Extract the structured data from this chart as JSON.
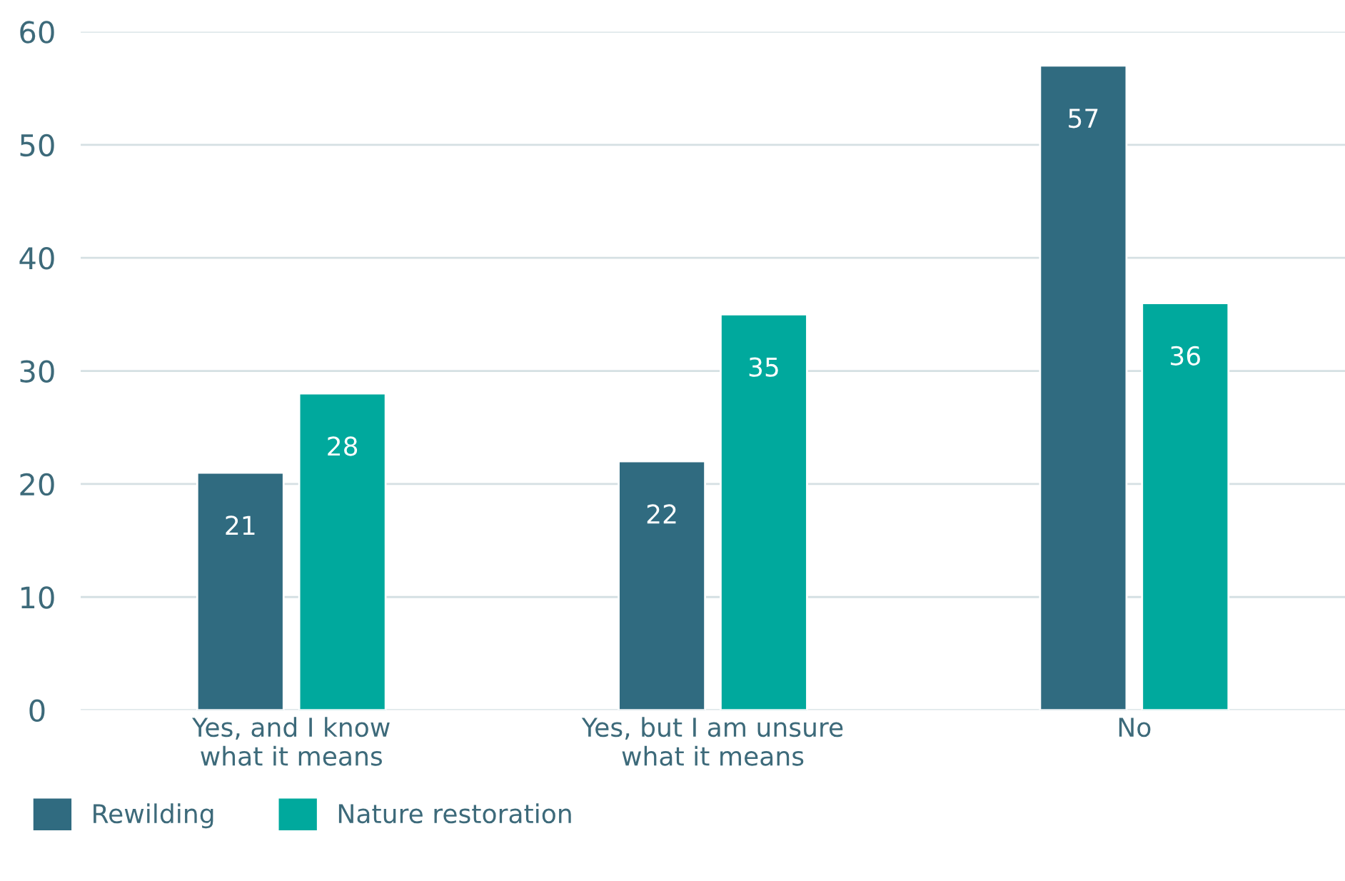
{
  "chart_data": {
    "type": "bar",
    "categories": [
      "Yes, and I know\nwhat it means",
      "Yes, but I am unsure\nwhat it means",
      "No"
    ],
    "series": [
      {
        "name": "Rewilding",
        "color": "#306b80",
        "values": [
          21,
          22,
          57
        ]
      },
      {
        "name": "Nature restoration",
        "color": "#00a99d",
        "values": [
          28,
          35,
          36
        ]
      }
    ],
    "ylim": [
      0,
      60
    ],
    "yticks": [
      0,
      10,
      20,
      30,
      40,
      50,
      60
    ],
    "grid": "y",
    "legend": "bottom left",
    "data_labels": true
  }
}
